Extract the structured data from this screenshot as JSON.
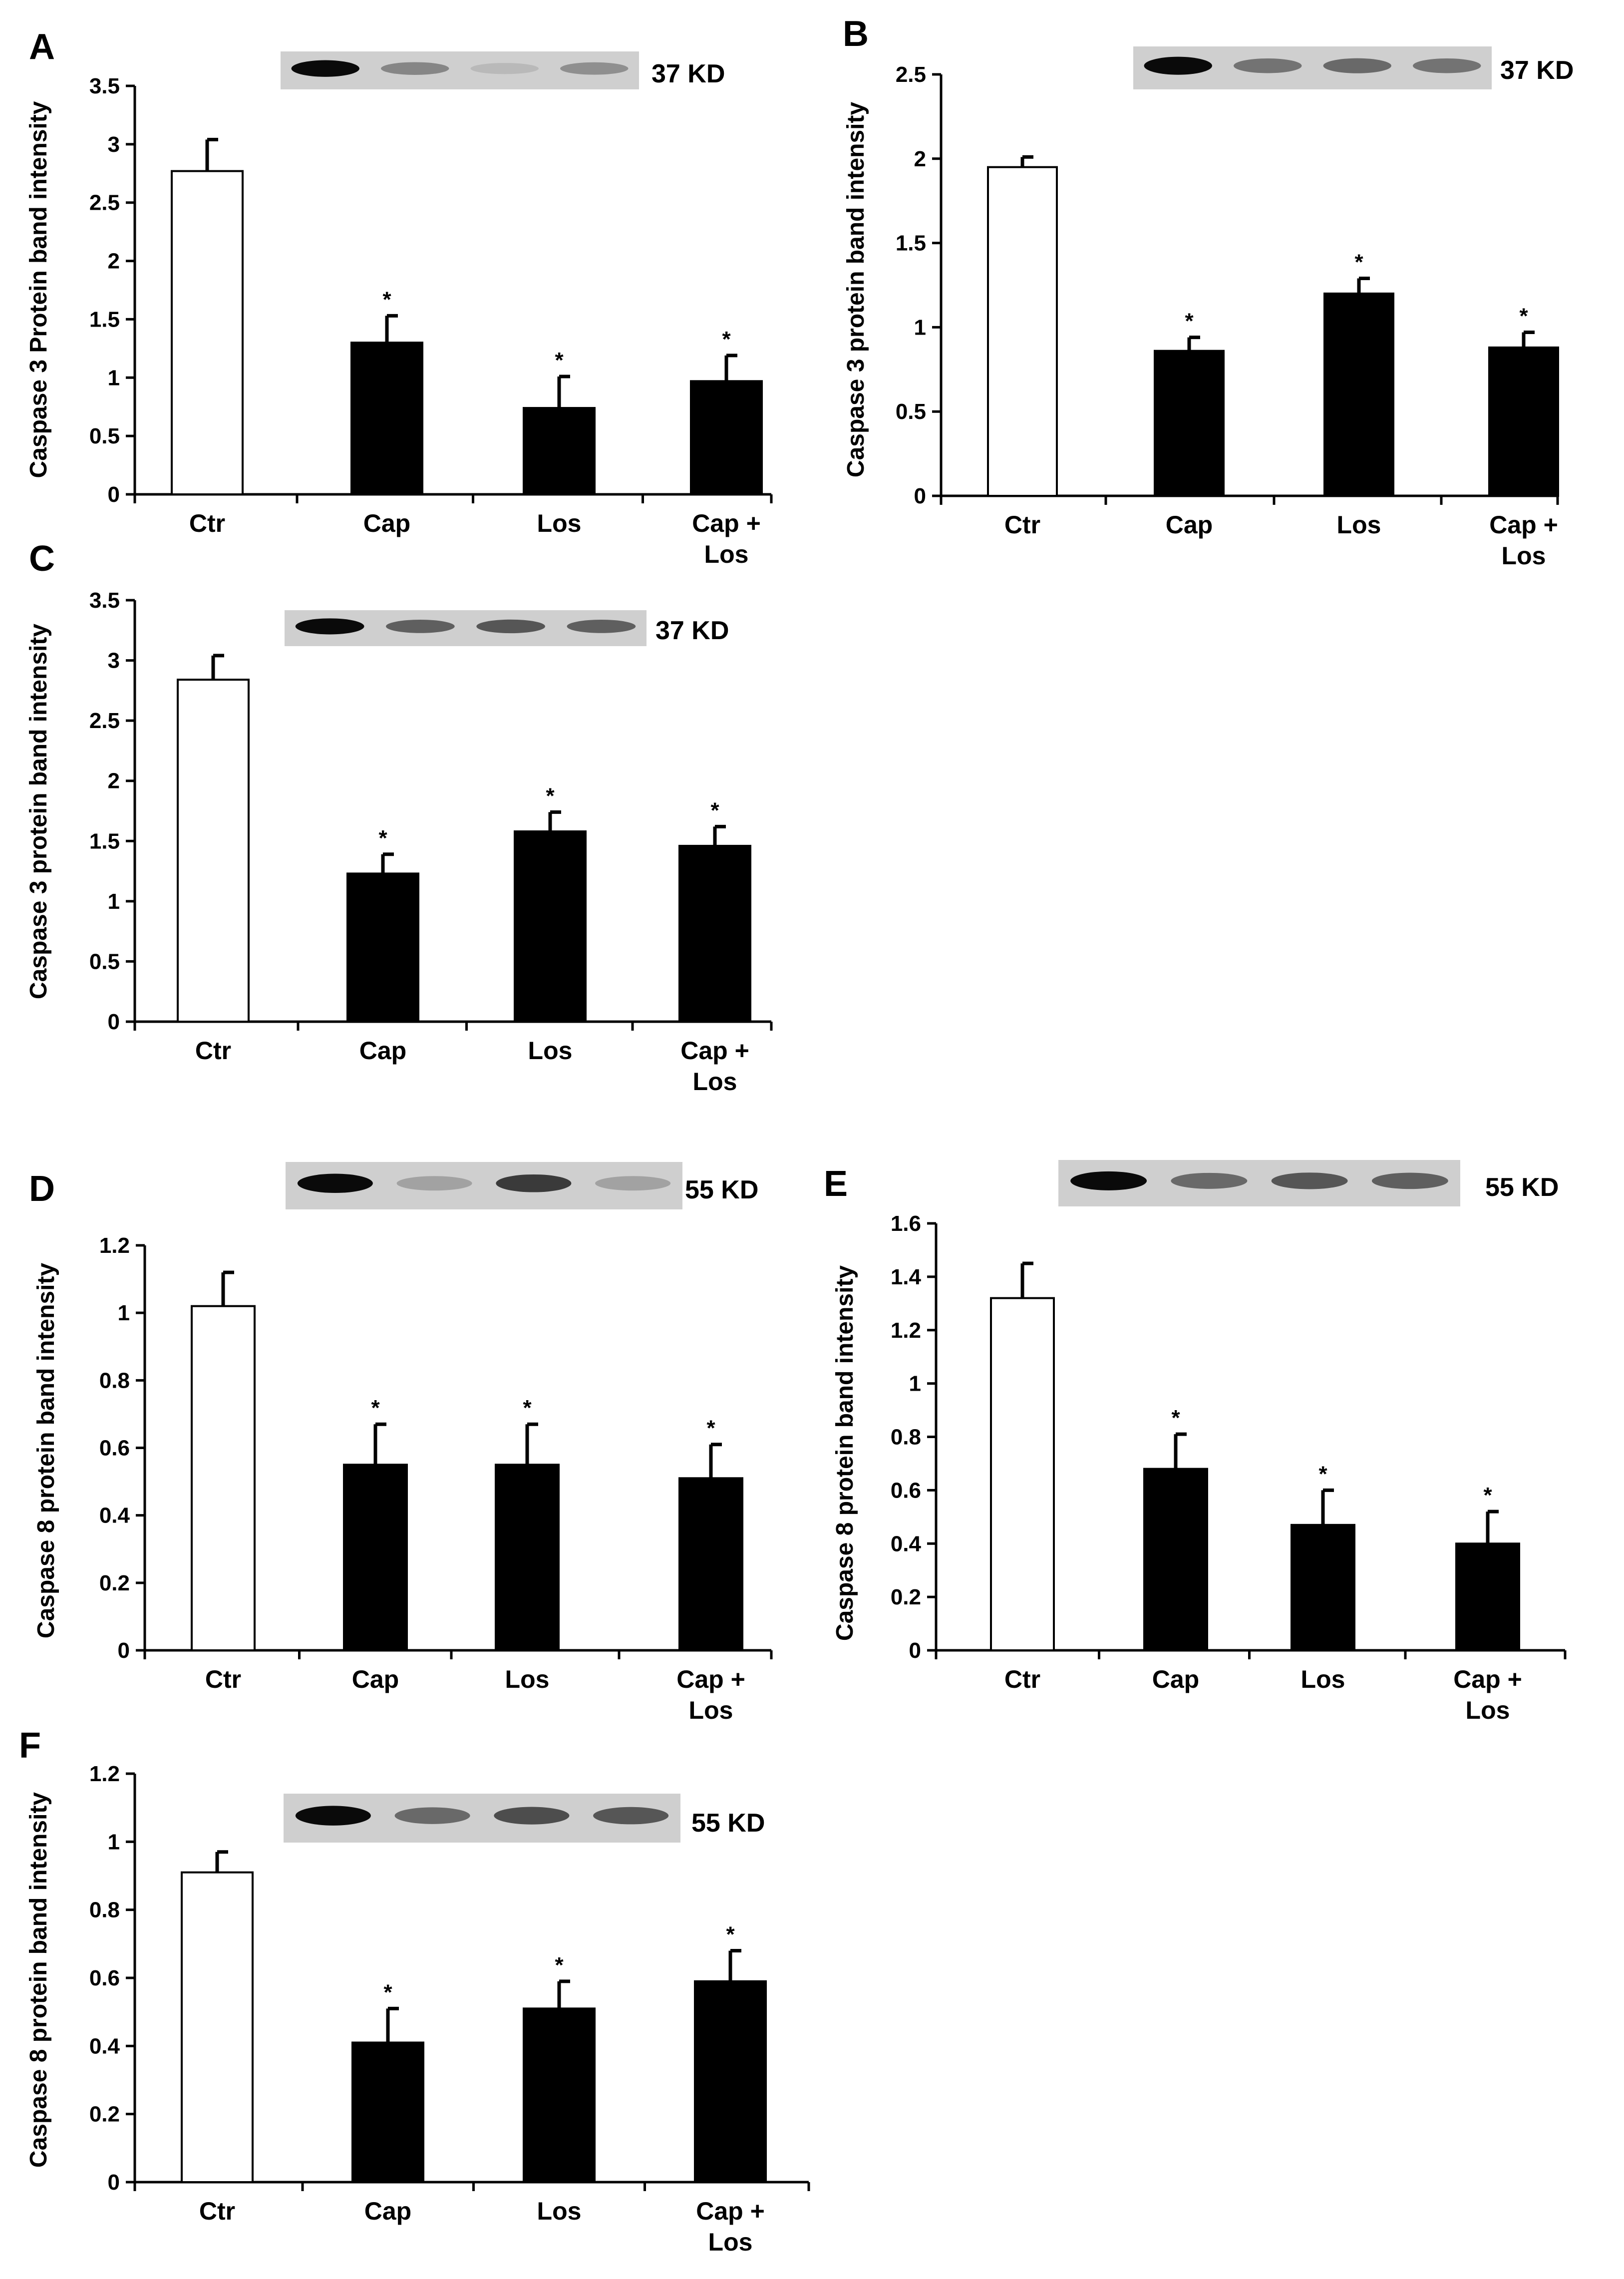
{
  "figure": {
    "bar_colors": {
      "control": "#ffffff",
      "treated": "#000000"
    },
    "blot_colors": {
      "background": "#cfcfcf",
      "band": "#111111"
    },
    "significance_marker": "*"
  },
  "chart_data": [
    {
      "panel": "A",
      "type": "bar",
      "ylabel": "Caspase 3 Protein band intensity",
      "categories": [
        "Ctr",
        "Cap",
        "Los",
        "Cap +\nLos"
      ],
      "values": [
        2.77,
        1.3,
        0.74,
        0.97
      ],
      "errors": [
        0.27,
        0.23,
        0.27,
        0.22
      ],
      "significant": [
        false,
        true,
        true,
        true
      ],
      "ylim": [
        0,
        3.5
      ],
      "ticks": [
        0,
        0.5,
        1,
        1.5,
        2,
        2.5,
        3,
        3.5
      ],
      "blot": {
        "label": "37 KD",
        "band_strength": [
          1.0,
          0.35,
          0.08,
          0.3
        ]
      }
    },
    {
      "panel": "B",
      "type": "bar",
      "ylabel": "Caspase 3 protein band intensity",
      "categories": [
        "Ctr",
        "Cap",
        "Los",
        "Cap +\nLos"
      ],
      "values": [
        1.95,
        0.86,
        1.2,
        0.88
      ],
      "errors": [
        0.06,
        0.08,
        0.09,
        0.09
      ],
      "significant": [
        false,
        true,
        true,
        true
      ],
      "ylim": [
        0,
        2.5
      ],
      "ticks": [
        0,
        0.5,
        1,
        1.5,
        2,
        2.5
      ],
      "blot": {
        "label": "37 KD",
        "band_strength": [
          1.0,
          0.45,
          0.5,
          0.45
        ]
      }
    },
    {
      "panel": "C",
      "type": "bar",
      "ylabel": "Caspase 3 protein band intensity",
      "categories": [
        "Ctr",
        "Cap",
        "Los",
        "Cap +\nLos"
      ],
      "values": [
        2.84,
        1.23,
        1.58,
        1.46
      ],
      "errors": [
        0.2,
        0.16,
        0.16,
        0.16
      ],
      "significant": [
        false,
        true,
        true,
        true
      ],
      "ylim": [
        0,
        3.5
      ],
      "ticks": [
        0,
        0.5,
        1,
        1.5,
        2,
        2.5,
        3,
        3.5
      ],
      "blot": {
        "label": "37 KD",
        "band_strength": [
          1.0,
          0.55,
          0.6,
          0.55
        ]
      }
    },
    {
      "panel": "D",
      "type": "bar",
      "ylabel": "Caspase 8 protein band intensity",
      "categories": [
        "Ctr",
        "Cap",
        "Los",
        "Cap +\nLos"
      ],
      "values": [
        1.02,
        0.55,
        0.55,
        0.51
      ],
      "errors": [
        0.1,
        0.12,
        0.12,
        0.1
      ],
      "significant": [
        false,
        true,
        true,
        true
      ],
      "ylim": [
        0,
        1.2
      ],
      "ticks": [
        0,
        0.2,
        0.4,
        0.6,
        0.8,
        1,
        1.2
      ],
      "blot": {
        "label": "55 KD",
        "band_strength": [
          1.0,
          0.2,
          0.75,
          0.2
        ]
      }
    },
    {
      "panel": "E",
      "type": "bar",
      "ylabel": "Caspase 8 protein band intensity",
      "categories": [
        "Ctr",
        "Cap",
        "Los",
        "Cap +\nLos"
      ],
      "values": [
        1.32,
        0.68,
        0.47,
        0.4
      ],
      "errors": [
        0.13,
        0.13,
        0.13,
        0.12
      ],
      "significant": [
        false,
        true,
        true,
        true
      ],
      "ylim": [
        0,
        1.6
      ],
      "ticks": [
        0,
        0.2,
        0.4,
        0.6,
        0.8,
        1,
        1.2,
        1.4,
        1.6
      ],
      "blot": {
        "label": "55 KD",
        "band_strength": [
          1.0,
          0.5,
          0.6,
          0.55
        ]
      }
    },
    {
      "panel": "F",
      "type": "bar",
      "ylabel": "Caspase 8 protein band intensity",
      "categories": [
        "Ctr",
        "Cap",
        "Los",
        "Cap +\nLos"
      ],
      "values": [
        0.91,
        0.41,
        0.51,
        0.59
      ],
      "errors": [
        0.06,
        0.1,
        0.08,
        0.09
      ],
      "significant": [
        false,
        true,
        true,
        true
      ],
      "ylim": [
        0,
        1.2
      ],
      "ticks": [
        0,
        0.2,
        0.4,
        0.6,
        0.8,
        1,
        1.2
      ],
      "blot": {
        "label": "55 KD",
        "band_strength": [
          1.0,
          0.5,
          0.65,
          0.6
        ]
      }
    }
  ]
}
